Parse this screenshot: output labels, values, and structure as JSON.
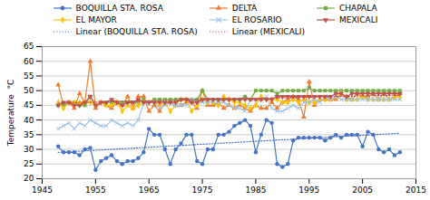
{
  "chart_data": {
    "type": "line",
    "ylabel": "Temperature  °C",
    "x": [
      1948,
      1949,
      1950,
      1951,
      1952,
      1953,
      1954,
      1955,
      1956,
      1957,
      1958,
      1959,
      1960,
      1961,
      1962,
      1963,
      1964,
      1965,
      1966,
      1967,
      1968,
      1969,
      1970,
      1971,
      1972,
      1973,
      1974,
      1975,
      1976,
      1977,
      1978,
      1979,
      1980,
      1981,
      1982,
      1983,
      1984,
      1985,
      1986,
      1987,
      1988,
      1989,
      1990,
      1991,
      1992,
      1993,
      1994,
      1995,
      1996,
      1997,
      1998,
      1999,
      2000,
      2001,
      2002,
      2003,
      2004,
      2005,
      2006,
      2007,
      2008,
      2009,
      2010,
      2011,
      2012
    ],
    "series": [
      {
        "name": "BOQUILLA STA. ROSA",
        "color": "#4472C4",
        "marker": "circle",
        "line_style": "solid",
        "values": [
          31,
          29,
          29,
          29,
          28,
          30,
          30.5,
          23,
          26,
          27,
          28,
          26,
          25,
          26,
          26,
          27,
          29,
          37,
          35,
          35,
          30,
          25,
          30,
          32,
          35,
          35,
          26,
          25,
          30,
          30,
          35,
          35,
          36,
          38,
          39,
          40,
          38,
          29,
          35,
          40,
          39,
          25,
          24,
          25,
          33,
          34,
          34,
          34,
          34,
          34,
          33,
          34,
          35,
          34,
          35,
          35,
          35,
          31,
          36,
          35,
          30,
          29,
          30,
          28,
          29
        ]
      },
      {
        "name": "DELTA",
        "color": "#ED7D31",
        "marker": "triangle",
        "line_style": "solid",
        "values": [
          52,
          45,
          46,
          44,
          49,
          46,
          60,
          44,
          46,
          45,
          44,
          46,
          45,
          48,
          44,
          48,
          48,
          43,
          45,
          43,
          46,
          46,
          45,
          45,
          46,
          46,
          44,
          50,
          45,
          45,
          46,
          44,
          45,
          44,
          45,
          44,
          43,
          45,
          44,
          44,
          46,
          44,
          46,
          47,
          48,
          47,
          41,
          53,
          45,
          47,
          47,
          47,
          47,
          49,
          48,
          47,
          49,
          48,
          48,
          49,
          47,
          49,
          47,
          48,
          49
        ]
      },
      {
        "name": "CHAPALA",
        "color": "#70AD47",
        "marker": "square",
        "line_style": "solid",
        "values": [
          45,
          45,
          46,
          46,
          45,
          45,
          48,
          45,
          46,
          46,
          46,
          46,
          46,
          46,
          46,
          46,
          47,
          46,
          47,
          47,
          47,
          47,
          47,
          47,
          47,
          47,
          47,
          50,
          47,
          47,
          47,
          47,
          47,
          47,
          47,
          48,
          47,
          50,
          50,
          50,
          50,
          49,
          50,
          50,
          50,
          50,
          50,
          51,
          50,
          50,
          50,
          50,
          50,
          50,
          50,
          50,
          50,
          50,
          50,
          50,
          50,
          50,
          50,
          50,
          50
        ]
      },
      {
        "name": "EL MAYOR",
        "color": "#FFC000",
        "marker": "diamond",
        "line_style": "solid",
        "values": [
          46,
          44,
          46,
          46,
          46,
          46,
          46,
          45,
          46,
          45,
          45,
          46,
          43,
          45,
          44,
          45,
          46,
          46,
          46,
          45,
          46,
          43,
          45,
          47,
          47,
          43,
          45,
          47,
          46,
          46,
          45,
          48,
          47,
          46,
          46,
          45,
          44,
          45,
          48,
          47,
          47,
          47,
          46,
          46,
          47,
          46,
          47,
          46,
          46,
          47,
          47,
          47,
          48,
          49,
          47,
          47,
          47,
          48,
          47,
          47,
          47,
          47,
          47,
          48,
          48
        ]
      },
      {
        "name": "EL ROSARIO",
        "color": "#9DC3E6",
        "marker": "x",
        "line_style": "solid",
        "values": [
          37,
          38,
          39,
          37,
          39,
          38,
          40,
          39,
          38,
          38,
          40,
          39,
          38,
          39,
          38,
          40,
          46,
          46,
          46,
          44,
          45,
          46,
          45,
          45,
          45,
          47,
          46,
          46,
          46,
          46,
          46,
          46,
          45,
          44,
          44,
          43,
          47,
          47,
          47,
          48,
          44,
          43,
          43,
          44,
          45,
          44,
          46,
          46,
          47,
          46,
          48,
          47,
          48,
          47,
          47,
          47,
          47,
          47,
          47,
          47,
          47,
          47,
          47,
          47,
          47
        ]
      },
      {
        "name": "MEXICALI",
        "color": "#C0504D",
        "marker": "triangle-down",
        "line_style": "solid",
        "values": [
          45,
          46,
          46,
          45,
          45,
          46,
          48,
          45,
          46,
          46,
          47,
          46,
          45,
          46,
          46,
          47,
          46,
          46,
          46,
          46,
          46,
          46,
          46,
          47,
          47,
          46,
          46,
          47,
          47,
          47,
          47,
          47,
          47,
          47,
          47,
          47,
          47,
          47,
          47,
          47,
          47,
          48,
          48,
          48,
          48,
          48,
          48,
          48,
          48,
          48,
          48,
          48,
          49,
          49,
          48,
          49,
          49,
          49,
          49,
          49,
          49,
          49,
          49,
          49,
          49
        ]
      },
      {
        "name": "Linear (BOQUILLA STA. ROSA)",
        "color": "#4472C4",
        "line_style": "dotted",
        "x": [
          1948,
          2012
        ],
        "values": [
          29.0,
          35.5
        ]
      },
      {
        "name": "Linear (MEXICALI)",
        "color": "#C0504D",
        "line_style": "dotted",
        "x": [
          1948,
          2012
        ],
        "values": [
          45.8,
          48.5
        ]
      }
    ],
    "xlim": [
      1945,
      2015
    ],
    "ylim": [
      20,
      65
    ],
    "xticks": [
      1945,
      1955,
      1965,
      1975,
      1985,
      1995,
      2005,
      2015
    ],
    "yticks": [
      20,
      25,
      30,
      35,
      40,
      45,
      50,
      55,
      60,
      65
    ],
    "grid": true,
    "legend": "top"
  }
}
